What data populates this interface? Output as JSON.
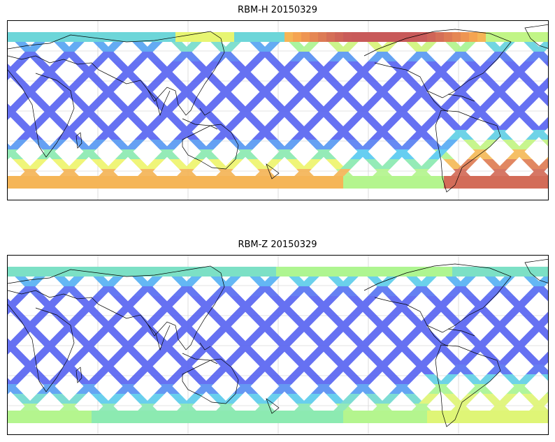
{
  "panels": [
    {
      "title": "RBM-H 20150329",
      "map_type": "cylindrical-equidistant",
      "colormap": "jet",
      "colormap_stops": [
        "#5a5af0",
        "#56c8f5",
        "#9ef59a",
        "#f5f56a",
        "#f5a050",
        "#c85a5a"
      ],
      "grid": true,
      "pattern": {
        "north_band": "mixed-east-warm",
        "south_band": "warm-wide",
        "americas_south": "warm"
      }
    },
    {
      "title": "RBM-Z 20150329",
      "map_type": "cylindrical-equidistant",
      "colormap": "jet",
      "colormap_stops": [
        "#5a5af0",
        "#56c8f5",
        "#9ef59a",
        "#f5f56a",
        "#f5a050",
        "#c85a5a"
      ],
      "grid": true,
      "pattern": {
        "north_band": "cyan-green",
        "south_band": "yellow-green",
        "americas_south": "yellow"
      }
    }
  ]
}
